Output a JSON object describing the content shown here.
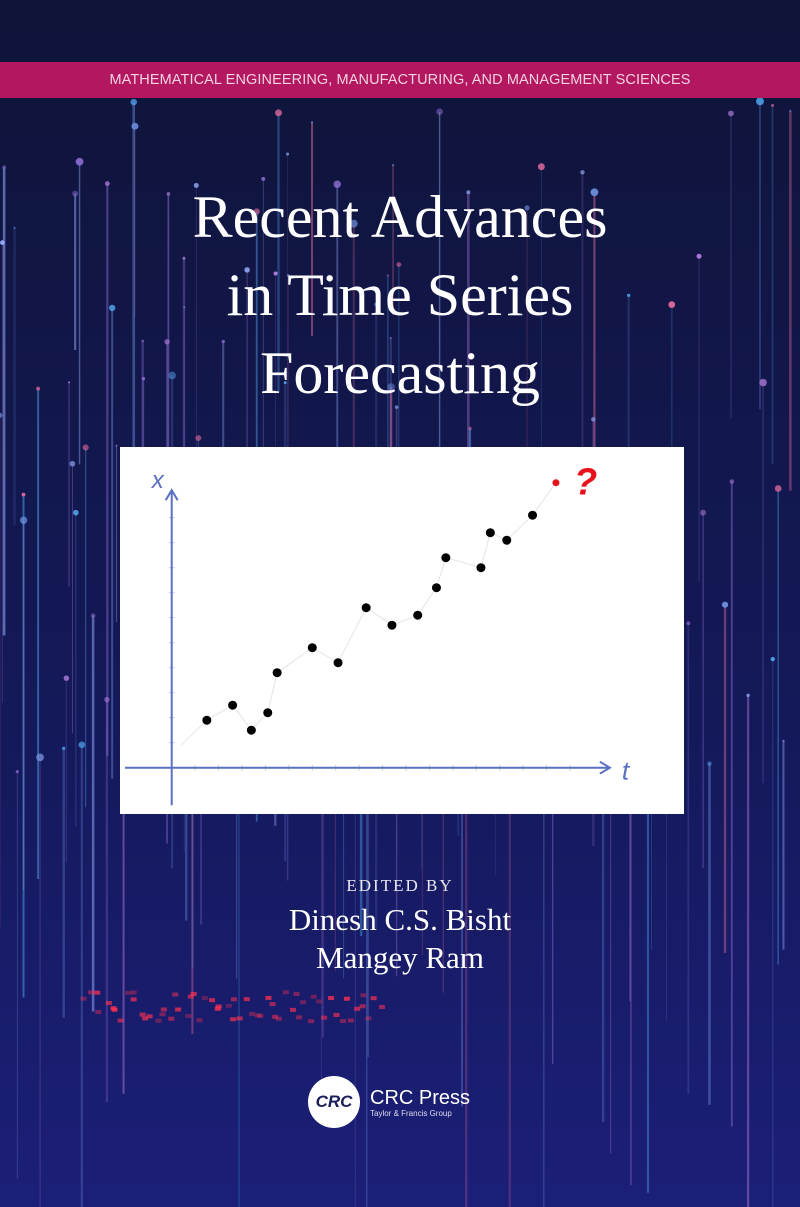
{
  "series_band": {
    "label": "MATHEMATICAL ENGINEERING, MANUFACTURING, AND MANAGEMENT SCIENCES"
  },
  "title": {
    "lines": [
      "Recent Advances",
      "in Time Series",
      "Forecasting"
    ]
  },
  "illustration": {
    "x_axis_label": "t",
    "y_axis_label": "x",
    "forecast_mark": "?",
    "colors": {
      "axis": "#5a70c0",
      "points": "#000000",
      "forecast": "#e8101a"
    },
    "chart_data": {
      "type": "scatter",
      "xlim": [
        -0.5,
        18.7
      ],
      "ylim": [
        -1.5,
        11.4
      ],
      "grid": false,
      "x": [
        1.5,
        2.6,
        3.4,
        4.1,
        4.5,
        6.0,
        7.1,
        8.3,
        9.4,
        10.5,
        11.3,
        11.7,
        13.2,
        13.6,
        14.3,
        15.4
      ],
      "y": [
        1.9,
        2.5,
        1.5,
        2.2,
        3.8,
        4.8,
        4.2,
        6.4,
        5.7,
        6.1,
        7.2,
        8.4,
        8.0,
        9.4,
        9.1,
        10.1
      ],
      "forecast_point": {
        "x": 16.4,
        "y": 11.4
      }
    }
  },
  "credits": {
    "edited_by": "EDITED BY",
    "editors": [
      "Dinesh C.S. Bisht",
      "Mangey Ram"
    ]
  },
  "publisher": {
    "logo_text": "CRC",
    "name": "CRC Press",
    "sub": "Taylor & Francis Group"
  },
  "colors": {
    "background": "#0f1438",
    "band": "#b3175f"
  }
}
